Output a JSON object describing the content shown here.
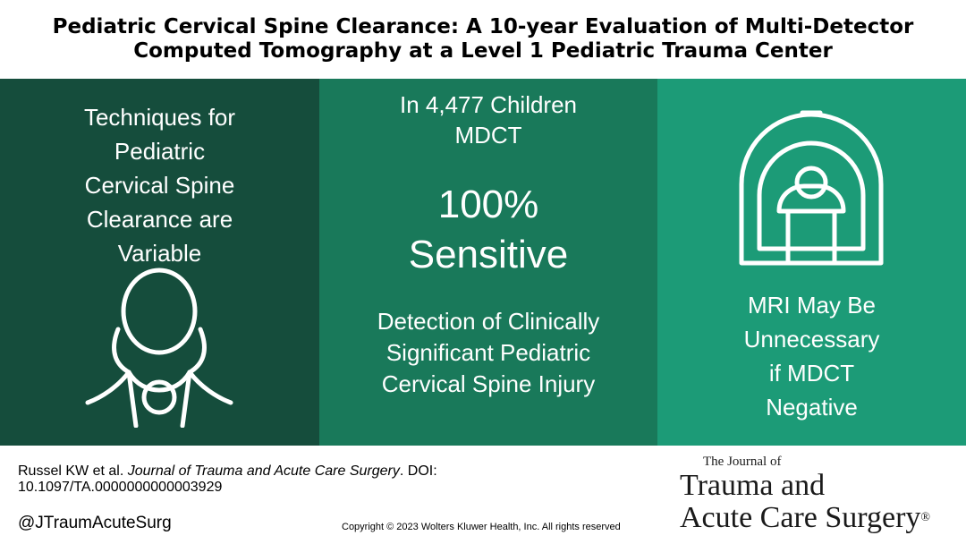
{
  "title": {
    "line1": "Pediatric Cervical Spine Clearance: A 10-year Evaluation of Multi-Detector",
    "line2": "Computed Tomography at a Level 1 Pediatric Trauma Center"
  },
  "panels": {
    "left": {
      "lines": [
        "Techniques for",
        "Pediatric",
        "Cervical Spine",
        "Clearance are",
        "Variable"
      ],
      "icon": "cervical-collar-icon"
    },
    "middle": {
      "top_lines": [
        "In 4,477 Children",
        "MDCT"
      ],
      "stat_value": "100%",
      "stat_label": "Sensitive",
      "bottom_lines": [
        "Detection of Clinically",
        "Significant Pediatric",
        "Cervical Spine Injury"
      ]
    },
    "right": {
      "icon": "ct-scanner-icon",
      "lines": [
        "MRI May Be",
        "Unnecessary",
        "if MDCT",
        "Negative"
      ]
    }
  },
  "colors": {
    "left_panel": "#154d3c",
    "middle_panel": "#19795a",
    "right_panel": "#1c9b77"
  },
  "footer": {
    "citation_authors": "Russel KW et al.",
    "citation_journal": "Journal of Trauma and Acute Care Surgery",
    "citation_doi": ". DOI: 10.1097/TA.0000000000003929",
    "handle": "@JTraumAcuteSurg",
    "copyright": "Copyright © 2023  Wolters Kluwer Health, Inc. All rights reserved",
    "logo_small": "The Journal of",
    "logo_line1": "Trauma and",
    "logo_line2": "Acute Care Surgery",
    "logo_reg": "®"
  }
}
